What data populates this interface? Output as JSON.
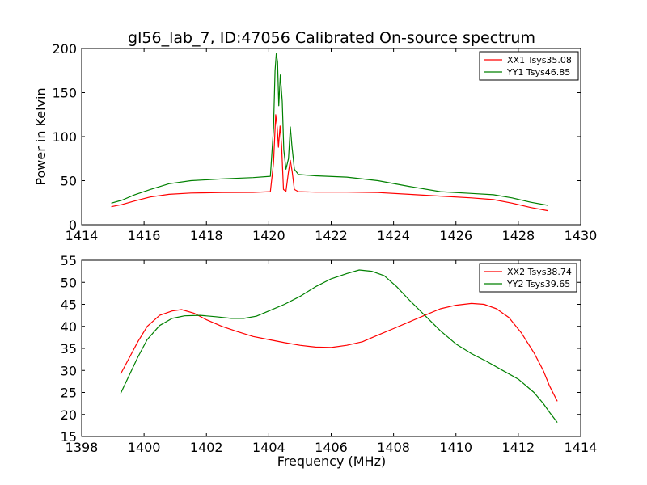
{
  "chart_data": [
    {
      "type": "line",
      "title": "gl56_lab_7, ID:47056 Calibrated On-source spectrum",
      "xlabel": "",
      "ylabel": "Power in Kelvin",
      "xlim": [
        1414,
        1430
      ],
      "ylim": [
        0,
        200
      ],
      "xticks": [
        "1414",
        "1416",
        "1418",
        "1420",
        "1422",
        "1424",
        "1426",
        "1428",
        "1430"
      ],
      "yticks": [
        "0",
        "50",
        "100",
        "150",
        "200"
      ],
      "legend_position": "top-right",
      "grid": false,
      "series": [
        {
          "name": "XX1 Tsys35.08",
          "color": "#ff0000",
          "points": [
            [
              1414.95,
              20.5
            ],
            [
              1415.3,
              23
            ],
            [
              1415.7,
              27
            ],
            [
              1416.2,
              31.5
            ],
            [
              1416.8,
              34.5
            ],
            [
              1417.5,
              36
            ],
            [
              1418.5,
              36.5
            ],
            [
              1419.5,
              36.7
            ],
            [
              1420.05,
              37.5
            ],
            [
              1420.15,
              70
            ],
            [
              1420.22,
              125
            ],
            [
              1420.27,
              110
            ],
            [
              1420.31,
              88
            ],
            [
              1420.36,
              112
            ],
            [
              1420.41,
              90
            ],
            [
              1420.47,
              40
            ],
            [
              1420.55,
              38
            ],
            [
              1420.63,
              60
            ],
            [
              1420.69,
              73
            ],
            [
              1420.75,
              60
            ],
            [
              1420.82,
              40
            ],
            [
              1420.95,
              37.5
            ],
            [
              1421.5,
              37
            ],
            [
              1422.5,
              37
            ],
            [
              1423.5,
              36.5
            ],
            [
              1424.5,
              34.5
            ],
            [
              1425.5,
              32.5
            ],
            [
              1426.5,
              30.5
            ],
            [
              1427.2,
              28.5
            ],
            [
              1427.8,
              24.5
            ],
            [
              1428.4,
              19.5
            ],
            [
              1428.95,
              16
            ]
          ]
        },
        {
          "name": "YY1 Tsys46.85",
          "color": "#008000",
          "points": [
            [
              1414.95,
              24.5
            ],
            [
              1415.3,
              28
            ],
            [
              1415.7,
              34
            ],
            [
              1416.2,
              40
            ],
            [
              1416.8,
              46.5
            ],
            [
              1417.5,
              50
            ],
            [
              1418.5,
              52
            ],
            [
              1419.5,
              53.5
            ],
            [
              1420.05,
              55
            ],
            [
              1420.15,
              110
            ],
            [
              1420.2,
              175
            ],
            [
              1420.24,
              194
            ],
            [
              1420.28,
              185
            ],
            [
              1420.32,
              135
            ],
            [
              1420.37,
              170
            ],
            [
              1420.43,
              140
            ],
            [
              1420.48,
              85
            ],
            [
              1420.55,
              63
            ],
            [
              1420.63,
              75
            ],
            [
              1420.69,
              111
            ],
            [
              1420.74,
              90
            ],
            [
              1420.82,
              63
            ],
            [
              1420.95,
              57
            ],
            [
              1421.5,
              55.5
            ],
            [
              1422.5,
              54
            ],
            [
              1423.5,
              50
            ],
            [
              1424.5,
              43.5
            ],
            [
              1425.5,
              37.5
            ],
            [
              1426.5,
              35.5
            ],
            [
              1427.2,
              34
            ],
            [
              1427.8,
              30.5
            ],
            [
              1428.4,
              25.5
            ],
            [
              1428.95,
              22
            ]
          ]
        }
      ]
    },
    {
      "type": "line",
      "title": "",
      "xlabel": "Frequency (MHz)",
      "ylabel": "",
      "xlim": [
        1398,
        1414
      ],
      "ylim": [
        15,
        55
      ],
      "xticks": [
        "1398",
        "1400",
        "1402",
        "1404",
        "1406",
        "1408",
        "1410",
        "1412",
        "1414"
      ],
      "yticks": [
        "15",
        "20",
        "25",
        "30",
        "35",
        "40",
        "45",
        "50",
        "55"
      ],
      "legend_position": "top-right",
      "grid": false,
      "series": [
        {
          "name": "XX2 Tsys38.74",
          "color": "#ff0000",
          "points": [
            [
              1399.25,
              29.2
            ],
            [
              1399.5,
              32.5
            ],
            [
              1399.8,
              36.5
            ],
            [
              1400.1,
              40
            ],
            [
              1400.5,
              42.5
            ],
            [
              1400.9,
              43.5
            ],
            [
              1401.2,
              43.8
            ],
            [
              1401.6,
              43
            ],
            [
              1402.0,
              41.5
            ],
            [
              1402.5,
              40
            ],
            [
              1403.0,
              38.8
            ],
            [
              1403.5,
              37.7
            ],
            [
              1404.0,
              37
            ],
            [
              1404.5,
              36.3
            ],
            [
              1405.0,
              35.7
            ],
            [
              1405.5,
              35.3
            ],
            [
              1406.0,
              35.2
            ],
            [
              1406.5,
              35.7
            ],
            [
              1407.0,
              36.5
            ],
            [
              1407.5,
              38
            ],
            [
              1408.0,
              39.5
            ],
            [
              1408.5,
              41
            ],
            [
              1409.0,
              42.5
            ],
            [
              1409.5,
              44
            ],
            [
              1410.0,
              44.8
            ],
            [
              1410.5,
              45.2
            ],
            [
              1410.9,
              45
            ],
            [
              1411.3,
              44
            ],
            [
              1411.7,
              42
            ],
            [
              1412.1,
              38.5
            ],
            [
              1412.5,
              34
            ],
            [
              1412.8,
              30
            ],
            [
              1413.0,
              26.5
            ],
            [
              1413.25,
              23
            ]
          ]
        },
        {
          "name": "YY2 Tsys39.65",
          "color": "#008000",
          "points": [
            [
              1399.25,
              24.8
            ],
            [
              1399.5,
              28.5
            ],
            [
              1399.8,
              33
            ],
            [
              1400.1,
              37
            ],
            [
              1400.5,
              40.2
            ],
            [
              1400.9,
              41.8
            ],
            [
              1401.3,
              42.4
            ],
            [
              1401.8,
              42.5
            ],
            [
              1402.3,
              42.2
            ],
            [
              1402.8,
              41.8
            ],
            [
              1403.2,
              41.8
            ],
            [
              1403.6,
              42.3
            ],
            [
              1404.0,
              43.5
            ],
            [
              1404.5,
              45
            ],
            [
              1405.0,
              46.8
            ],
            [
              1405.5,
              49
            ],
            [
              1406.0,
              50.8
            ],
            [
              1406.5,
              52
            ],
            [
              1406.9,
              52.8
            ],
            [
              1407.3,
              52.5
            ],
            [
              1407.7,
              51.5
            ],
            [
              1408.1,
              49
            ],
            [
              1408.5,
              46
            ],
            [
              1409.0,
              42.5
            ],
            [
              1409.5,
              39
            ],
            [
              1410.0,
              36
            ],
            [
              1410.5,
              33.8
            ],
            [
              1411.0,
              32
            ],
            [
              1411.5,
              30
            ],
            [
              1412.0,
              28
            ],
            [
              1412.5,
              25
            ],
            [
              1412.8,
              22.5
            ],
            [
              1413.0,
              20.5
            ],
            [
              1413.25,
              18.2
            ]
          ]
        }
      ]
    }
  ]
}
